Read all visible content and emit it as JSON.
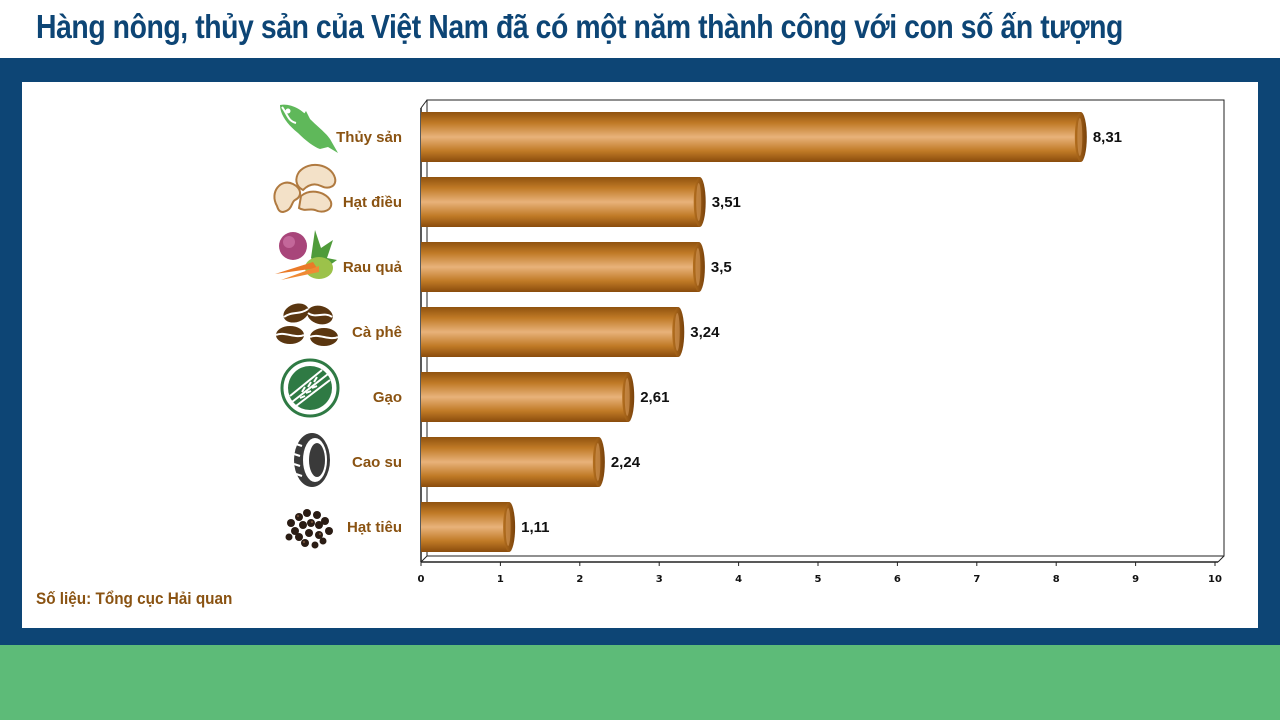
{
  "header": {
    "title": "Hàng nông, thủy sản của Việt Nam đã có một năm thành công với con số ấn tượng"
  },
  "footer": {
    "source": "Số liệu: Tổng cục Hải quan"
  },
  "colors": {
    "frame": "#0d4575",
    "footer_band": "#5dbb78",
    "bar": "#c07a26",
    "bar_highlight": "#e8b27a",
    "label": "#8a5312",
    "title": "#0d4575"
  },
  "chart_data": {
    "type": "bar",
    "orientation": "horizontal",
    "title": "",
    "xlabel": "",
    "ylabel": "",
    "categories": [
      "Thủy sản",
      "Hạt điều",
      "Rau quả",
      "Cà phê",
      "Gạo",
      "Cao su",
      "Hạt tiêu"
    ],
    "values": [
      8.31,
      3.51,
      3.5,
      3.24,
      2.61,
      2.24,
      1.11
    ],
    "value_labels": [
      "8,31",
      "3,51",
      "3,5",
      "3,24",
      "2,61",
      "2,24",
      "1,11"
    ],
    "icons": [
      "fish-icon",
      "cashew-icon",
      "vegetables-icon",
      "coffee-beans-icon",
      "rice-icon",
      "tire-icon",
      "pepper-icon"
    ],
    "xlim": [
      0,
      10
    ],
    "xticks": [
      "0",
      "1",
      "2",
      "3",
      "4",
      "5",
      "6",
      "7",
      "8",
      "9",
      "10"
    ],
    "grid": false,
    "legend": "none"
  }
}
